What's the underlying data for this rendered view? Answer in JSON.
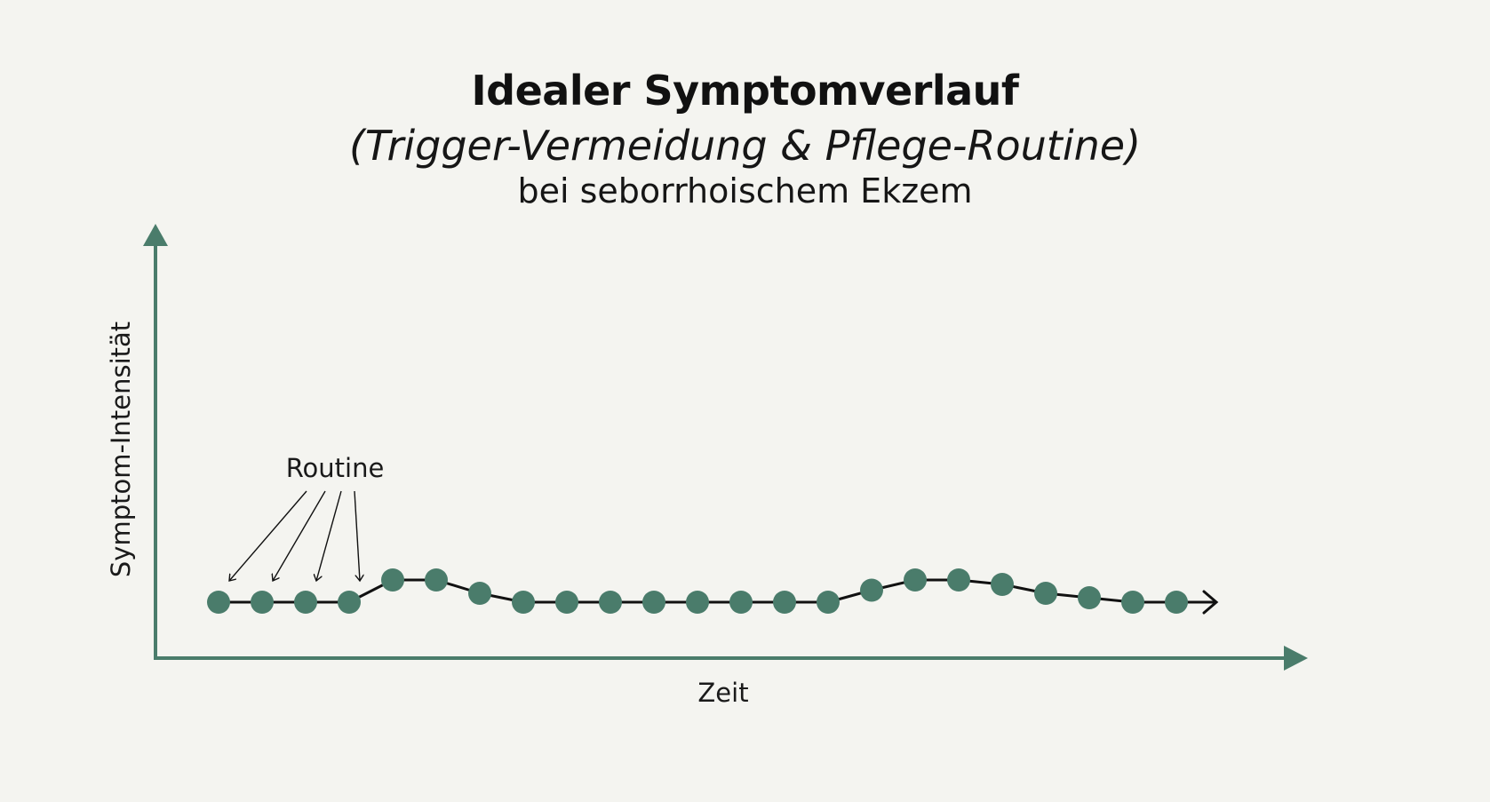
{
  "chart_data": {
    "type": "line",
    "title": "Idealer Symptomverlauf",
    "subtitle": "(Trigger-Vermeidung & Pflege-Routine)",
    "subtitle2": "bei seborrhoischem Ekzem",
    "xlabel": "Zeit",
    "ylabel": "Symptom-Intensität",
    "annotation": "Routine",
    "grid": false,
    "legend": "none",
    "series": [
      {
        "values": [
          1,
          1,
          1,
          1,
          1.5,
          1.5,
          1.2,
          1,
          1,
          1,
          1,
          1,
          1,
          1,
          1,
          1.27,
          1.5,
          1.5,
          1.4,
          1.2,
          1.1,
          1,
          1
        ]
      }
    ],
    "colors": {
      "axis": "#4a7c6b",
      "marker": "#4a7c6b",
      "line": "#111111",
      "background": "#f4f4f0"
    }
  }
}
